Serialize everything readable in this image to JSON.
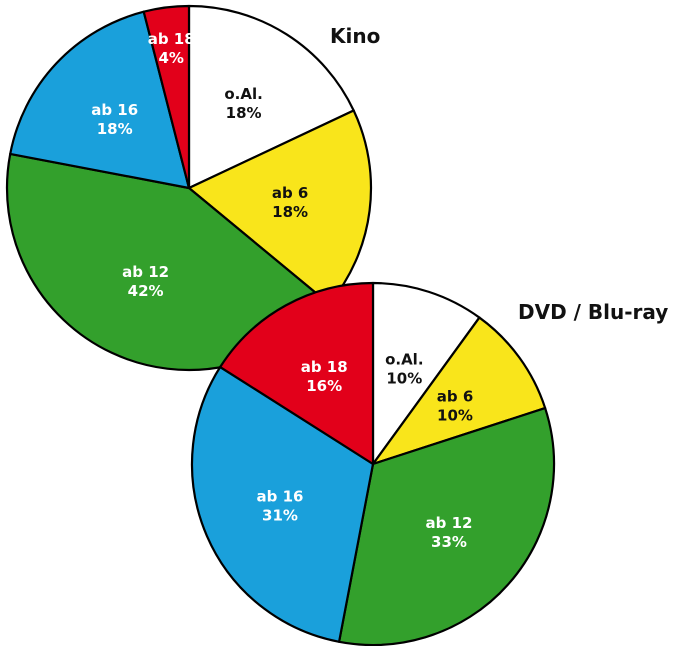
{
  "chart_data": [
    {
      "type": "pie",
      "title": "Kino",
      "slices": [
        {
          "category": "o.Al.",
          "percent_label": "18%",
          "value": 18,
          "color": "#ffffff",
          "label_color": "#111111"
        },
        {
          "category": "ab 6",
          "percent_label": "18%",
          "value": 18,
          "color": "#f9e51b",
          "label_color": "#111111"
        },
        {
          "category": "ab 12",
          "percent_label": "42%",
          "value": 42,
          "color": "#33a02c",
          "label_color": "#ffffff"
        },
        {
          "category": "ab 16",
          "percent_label": "18%",
          "value": 18,
          "color": "#1aa0db",
          "label_color": "#ffffff"
        },
        {
          "category": "ab 18",
          "percent_label": "4%",
          "value": 4,
          "color": "#e2001a",
          "label_color": "#ffffff"
        }
      ]
    },
    {
      "type": "pie",
      "title": "DVD / Blu-ray",
      "slices": [
        {
          "category": "o.Al.",
          "percent_label": "10%",
          "value": 10,
          "color": "#ffffff",
          "label_color": "#111111"
        },
        {
          "category": "ab 6",
          "percent_label": "10%",
          "value": 10,
          "color": "#f9e51b",
          "label_color": "#111111"
        },
        {
          "category": "ab 12",
          "percent_label": "33%",
          "value": 33,
          "color": "#33a02c",
          "label_color": "#ffffff"
        },
        {
          "category": "ab 16",
          "percent_label": "31%",
          "value": 31,
          "color": "#1aa0db",
          "label_color": "#ffffff"
        },
        {
          "category": "ab 18",
          "percent_label": "16%",
          "value": 16,
          "color": "#e2001a",
          "label_color": "#ffffff"
        }
      ]
    }
  ]
}
